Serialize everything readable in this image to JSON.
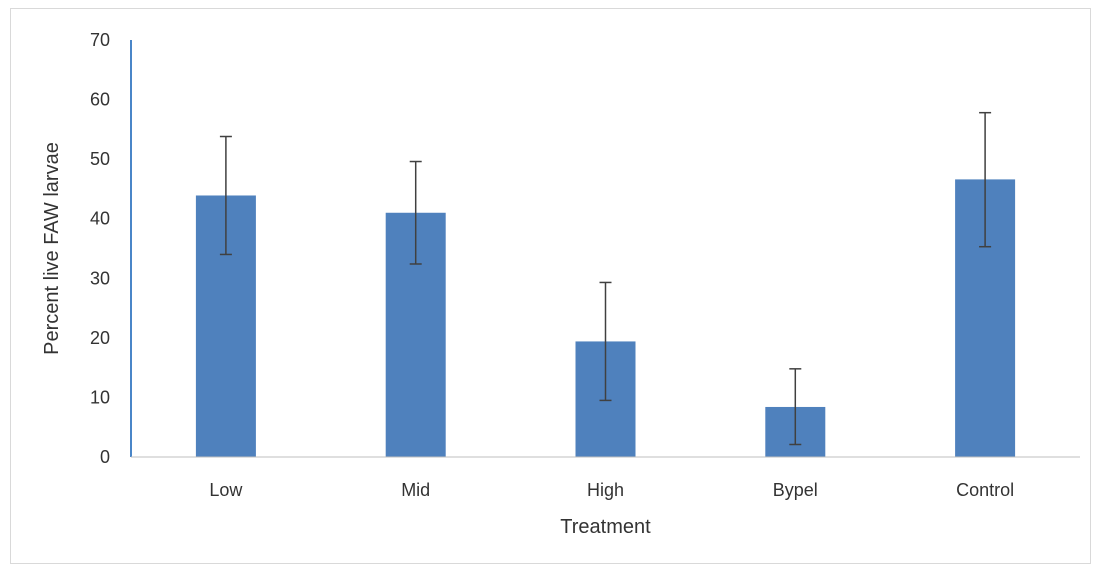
{
  "chart_data": {
    "type": "bar",
    "title": "",
    "xlabel": "Treatment",
    "ylabel": "Percent live FAW larvae",
    "categories": [
      "Low",
      "Mid",
      "High",
      "Bypel",
      "Control"
    ],
    "values": [
      43.9,
      41.0,
      19.4,
      8.4,
      46.6
    ],
    "error_bars": [
      [
        34.0,
        53.8
      ],
      [
        32.4,
        49.6
      ],
      [
        9.5,
        29.3
      ],
      [
        2.1,
        14.8
      ],
      [
        35.3,
        57.8
      ]
    ],
    "ylim": [
      0,
      70
    ],
    "yticks": [
      0,
      10,
      20,
      30,
      40,
      50,
      60,
      70
    ],
    "grid": false,
    "legend": "none",
    "colors": {
      "bar": "#4f81bd",
      "error_bar": "#404040",
      "axis": "#4a86c8",
      "baseline": "#bfbfbf",
      "text": "#333333",
      "frame": "#d9d9d9"
    }
  }
}
